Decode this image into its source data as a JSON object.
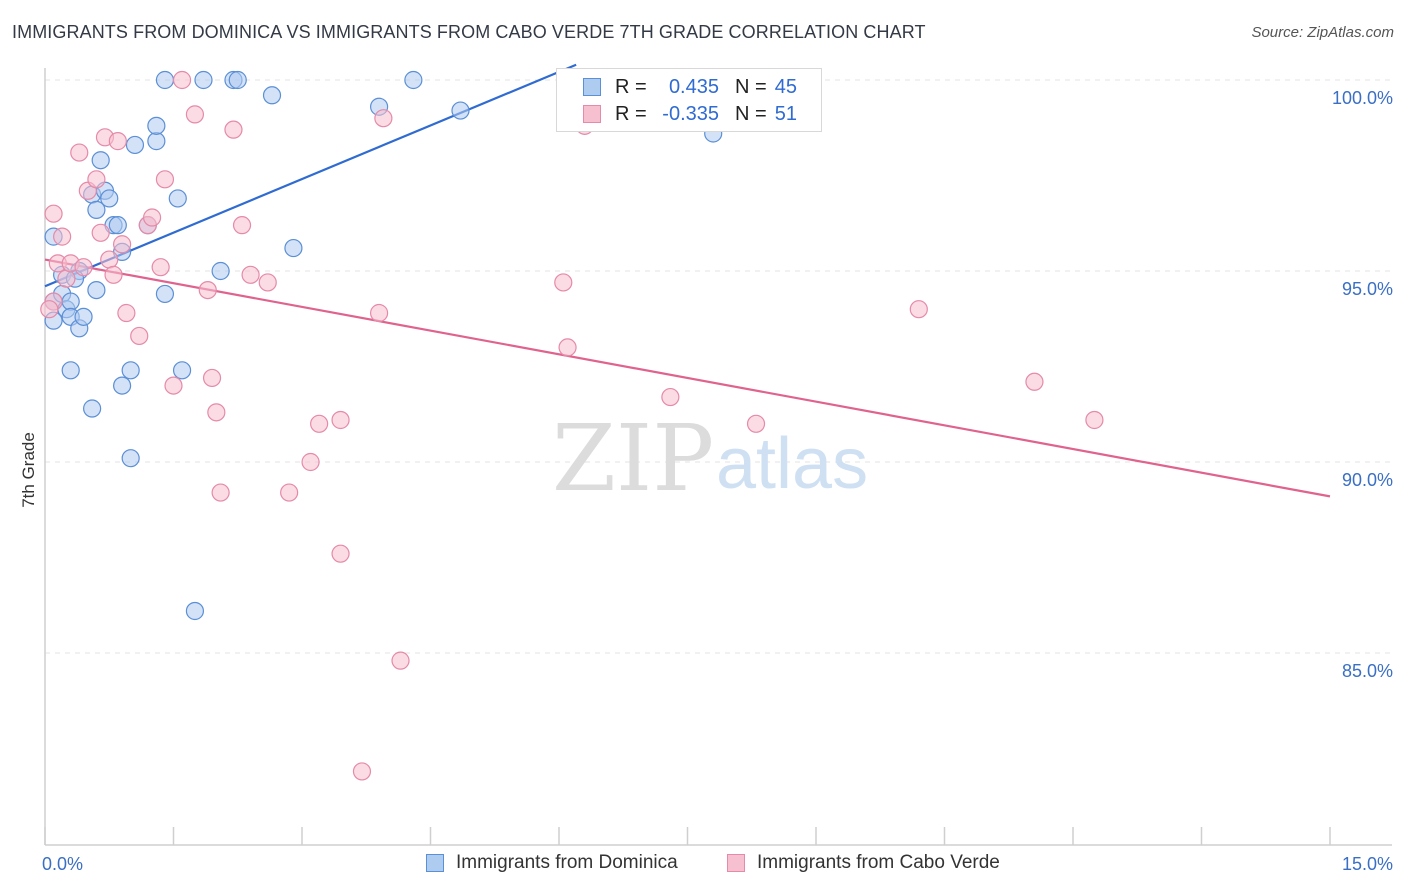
{
  "title": "IMMIGRANTS FROM DOMINICA VS IMMIGRANTS FROM CABO VERDE 7TH GRADE CORRELATION CHART",
  "source": "Source: ZipAtlas.com",
  "watermark": {
    "zip": "ZIP",
    "atlas": "atlas"
  },
  "colors": {
    "dominica_fill": "#aecbf0",
    "dominica_stroke": "#5b8fd6",
    "dominica_line": "#2f6bd1",
    "caboverde_fill": "#f7c0d0",
    "caboverde_stroke": "#e58aa8",
    "caboverde_line": "#e0628e",
    "grid": "#e3e3e3",
    "tick_label": "#3a6fc4"
  },
  "legend": {
    "rows": [
      {
        "r_label": "R =",
        "r_value": "0.435",
        "n_label": "N =",
        "n_value": "45"
      },
      {
        "r_label": "R =",
        "r_value": "-0.335",
        "n_label": "N =",
        "n_value": "51"
      }
    ]
  },
  "chart_data": {
    "type": "scatter",
    "title": "IMMIGRANTS FROM DOMINICA VS IMMIGRANTS FROM CABO VERDE 7TH GRADE CORRELATION CHART",
    "xlabel": "",
    "ylabel": "7th Grade",
    "xlim": [
      0,
      15
    ],
    "ylim": [
      80.5,
      100.5
    ],
    "x_tick_labels": [
      {
        "value": 0,
        "label": "0.0%"
      },
      {
        "value": 15,
        "label": "15.0%"
      }
    ],
    "y_tick_labels": [
      {
        "value": 100,
        "label": "100.0%"
      },
      {
        "value": 95,
        "label": "95.0%"
      },
      {
        "value": 90,
        "label": "90.0%"
      },
      {
        "value": 85,
        "label": "85.0%"
      }
    ],
    "legend_position": "top-center",
    "series": [
      {
        "name": "Immigrants from Dominica",
        "r": 0.435,
        "n": 45,
        "trend": {
          "x": [
            0.0,
            6.2
          ],
          "y": [
            94.6,
            100.4
          ]
        },
        "points": [
          [
            0.1,
            94.2
          ],
          [
            0.1,
            95.9
          ],
          [
            0.1,
            93.7
          ],
          [
            0.2,
            94.4
          ],
          [
            0.2,
            94.9
          ],
          [
            0.25,
            94.0
          ],
          [
            0.3,
            94.2
          ],
          [
            0.3,
            93.8
          ],
          [
            0.3,
            92.4
          ],
          [
            0.4,
            93.5
          ],
          [
            0.4,
            95.0
          ],
          [
            0.45,
            93.8
          ],
          [
            0.55,
            97.0
          ],
          [
            0.6,
            96.6
          ],
          [
            0.6,
            94.5
          ],
          [
            0.65,
            97.9
          ],
          [
            0.7,
            97.1
          ],
          [
            0.75,
            96.9
          ],
          [
            0.8,
            96.2
          ],
          [
            0.85,
            96.2
          ],
          [
            0.9,
            95.5
          ],
          [
            0.55,
            91.4
          ],
          [
            0.9,
            92.0
          ],
          [
            1.0,
            92.4
          ],
          [
            1.0,
            90.1
          ],
          [
            1.05,
            98.3
          ],
          [
            1.3,
            98.4
          ],
          [
            1.3,
            98.8
          ],
          [
            1.4,
            100.0
          ],
          [
            1.4,
            94.4
          ],
          [
            1.55,
            96.9
          ],
          [
            1.6,
            92.4
          ],
          [
            1.75,
            86.1
          ],
          [
            1.85,
            100.0
          ],
          [
            2.05,
            95.0
          ],
          [
            2.2,
            100.0
          ],
          [
            2.25,
            100.0
          ],
          [
            2.65,
            99.6
          ],
          [
            2.9,
            95.6
          ],
          [
            3.9,
            99.3
          ],
          [
            4.3,
            100.0
          ],
          [
            4.85,
            99.2
          ],
          [
            7.8,
            98.6
          ],
          [
            1.2,
            96.2
          ],
          [
            0.35,
            94.8
          ]
        ]
      },
      {
        "name": "Immigrants from Cabo Verde",
        "r": -0.335,
        "n": 51,
        "trend": {
          "x": [
            0.0,
            15.0
          ],
          "y": [
            95.3,
            89.1
          ]
        },
        "points": [
          [
            0.1,
            96.5
          ],
          [
            0.1,
            94.2
          ],
          [
            0.15,
            95.2
          ],
          [
            0.2,
            95.9
          ],
          [
            0.25,
            94.8
          ],
          [
            0.3,
            95.2
          ],
          [
            0.4,
            98.1
          ],
          [
            0.45,
            95.1
          ],
          [
            0.5,
            97.1
          ],
          [
            0.6,
            97.4
          ],
          [
            0.65,
            96.0
          ],
          [
            0.7,
            98.5
          ],
          [
            0.75,
            95.3
          ],
          [
            0.8,
            94.9
          ],
          [
            0.85,
            98.4
          ],
          [
            0.9,
            95.7
          ],
          [
            0.95,
            93.9
          ],
          [
            1.1,
            93.3
          ],
          [
            1.2,
            96.2
          ],
          [
            1.25,
            96.4
          ],
          [
            1.35,
            95.1
          ],
          [
            1.4,
            97.4
          ],
          [
            1.5,
            92.0
          ],
          [
            1.6,
            100.0
          ],
          [
            1.75,
            99.1
          ],
          [
            1.9,
            94.5
          ],
          [
            1.95,
            92.2
          ],
          [
            2.0,
            91.3
          ],
          [
            2.05,
            89.2
          ],
          [
            2.2,
            98.7
          ],
          [
            2.3,
            96.2
          ],
          [
            2.4,
            94.9
          ],
          [
            2.6,
            94.7
          ],
          [
            2.85,
            89.2
          ],
          [
            3.1,
            90.0
          ],
          [
            3.2,
            91.0
          ],
          [
            3.45,
            91.1
          ],
          [
            3.45,
            87.6
          ],
          [
            3.7,
            81.9
          ],
          [
            3.9,
            93.9
          ],
          [
            3.95,
            99.0
          ],
          [
            4.15,
            84.8
          ],
          [
            6.05,
            94.7
          ],
          [
            6.1,
            93.0
          ],
          [
            6.3,
            98.8
          ],
          [
            7.3,
            91.7
          ],
          [
            8.3,
            91.0
          ],
          [
            10.2,
            94.0
          ],
          [
            11.55,
            92.1
          ],
          [
            12.25,
            91.1
          ],
          [
            0.05,
            94.0
          ]
        ]
      }
    ]
  },
  "bottom_legend": {
    "items": [
      {
        "label": "Immigrants from Dominica"
      },
      {
        "label": "Immigrants from Cabo Verde"
      }
    ]
  }
}
